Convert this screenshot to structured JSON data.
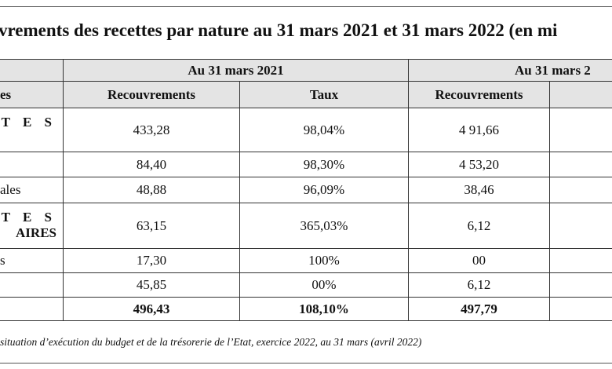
{
  "title": "vrements des recettes par nature au 31 mars 2021 et 31 mars 2022 (en mi",
  "table": {
    "group_headers": [
      "Au 31 mars 2021",
      "Au 31 mars 2"
    ],
    "column_headers": [
      "es",
      "Recouvrements",
      "Taux",
      "Recouvrements"
    ],
    "rows": [
      {
        "label": [
          "T E S"
        ],
        "label_bold": true,
        "cells": [
          "433,28",
          "98,04%",
          "4 91,66"
        ]
      },
      {
        "cells": [
          "84,40",
          "98,30%",
          "4 53,20"
        ]
      },
      {
        "label": [
          "ales"
        ],
        "cells": [
          "48,88",
          "96,09%",
          "38,46"
        ]
      },
      {
        "label": [
          "T E S",
          "AIRES"
        ],
        "label_bold": true,
        "cells": [
          "63,15",
          "365,03%",
          "6,12"
        ]
      },
      {
        "label": [
          "s"
        ],
        "cells": [
          "17,30",
          "100%",
          "00"
        ]
      },
      {
        "cells": [
          "45,85",
          "00%",
          "6,12"
        ]
      },
      {
        "bold": true,
        "cells": [
          "496,43",
          "108,10%",
          "497,79"
        ]
      }
    ]
  },
  "source": "situation d’exécution du budget et de la trésorerie de l’Etat, exercice 2022, au 31 mars (avril 2022)"
}
